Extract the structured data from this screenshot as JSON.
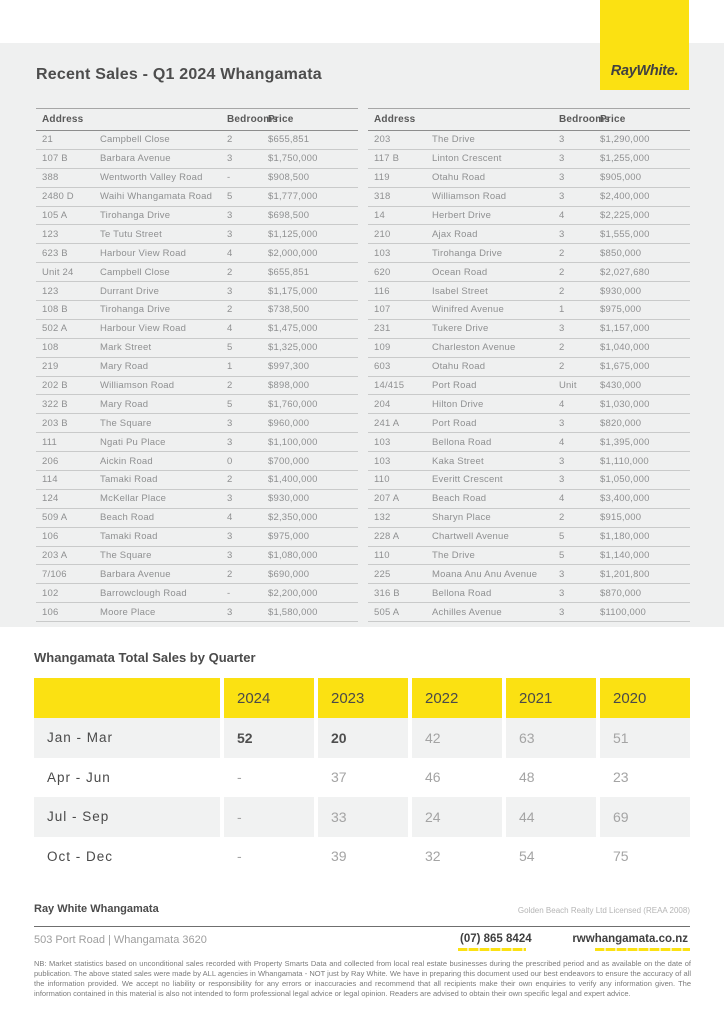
{
  "brand": {
    "logo_text": "RayWhite.",
    "yellow": "#FBE112"
  },
  "page_title": "Recent Sales - Q1 2024 Whangamata",
  "sales": {
    "header": {
      "address": "Address",
      "bedrooms": "Bedrooms",
      "price": "Price"
    },
    "left_rows": [
      {
        "number": "21",
        "street": "Campbell Close",
        "bedrooms": "2",
        "price": "$655,851"
      },
      {
        "number": "107 B",
        "street": "Barbara Avenue",
        "bedrooms": "3",
        "price": "$1,750,000"
      },
      {
        "number": "388",
        "street": "Wentworth Valley Road",
        "bedrooms": "-",
        "price": "$908,500"
      },
      {
        "number": "2480 D",
        "street": "Waihi Whangamata Road",
        "bedrooms": "5",
        "price": "$1,777,000"
      },
      {
        "number": "105 A",
        "street": "Tirohanga Drive",
        "bedrooms": "3",
        "price": "$698,500"
      },
      {
        "number": "123",
        "street": "Te Tutu Street",
        "bedrooms": "3",
        "price": "$1,125,000"
      },
      {
        "number": "623 B",
        "street": "Harbour View Road",
        "bedrooms": "4",
        "price": "$2,000,000"
      },
      {
        "number": "Unit 24",
        "street": "Campbell Close",
        "bedrooms": "2",
        "price": "$655,851"
      },
      {
        "number": "123",
        "street": "Durrant Drive",
        "bedrooms": "3",
        "price": "$1,175,000"
      },
      {
        "number": "108 B",
        "street": "Tirohanga Drive",
        "bedrooms": "2",
        "price": "$738,500"
      },
      {
        "number": "502 A",
        "street": "Harbour View Road",
        "bedrooms": "4",
        "price": "$1,475,000"
      },
      {
        "number": "108",
        "street": "Mark Street",
        "bedrooms": "5",
        "price": "$1,325,000"
      },
      {
        "number": "219",
        "street": "Mary Road",
        "bedrooms": "1",
        "price": "$997,300"
      },
      {
        "number": "202 B",
        "street": "Williamson Road",
        "bedrooms": "2",
        "price": "$898,000"
      },
      {
        "number": "322 B",
        "street": "Mary Road",
        "bedrooms": "5",
        "price": "$1,760,000"
      },
      {
        "number": "203 B",
        "street": "The Square",
        "bedrooms": "3",
        "price": "$960,000"
      },
      {
        "number": "111",
        "street": "Ngati Pu Place",
        "bedrooms": "3",
        "price": "$1,100,000"
      },
      {
        "number": "206",
        "street": "Aickin Road",
        "bedrooms": "0",
        "price": "$700,000"
      },
      {
        "number": "114",
        "street": "Tamaki Road",
        "bedrooms": "2",
        "price": "$1,400,000"
      },
      {
        "number": "124",
        "street": "McKellar Place",
        "bedrooms": "3",
        "price": "$930,000"
      },
      {
        "number": "509 A",
        "street": "Beach Road",
        "bedrooms": "4",
        "price": "$2,350,000"
      },
      {
        "number": "106",
        "street": "Tamaki Road",
        "bedrooms": "3",
        "price": "$975,000"
      },
      {
        "number": "203 A",
        "street": "The Square",
        "bedrooms": "3",
        "price": "$1,080,000"
      },
      {
        "number": "7/106",
        "street": "Barbara Avenue",
        "bedrooms": "2",
        "price": "$690,000"
      },
      {
        "number": "102",
        "street": "Barrowclough Road",
        "bedrooms": "-",
        "price": "$2,200,000"
      },
      {
        "number": "106",
        "street": "Moore Place",
        "bedrooms": "3",
        "price": "$1,580,000"
      }
    ],
    "right_rows": [
      {
        "number": "203",
        "street": "The Drive",
        "bedrooms": "3",
        "price": "$1,290,000"
      },
      {
        "number": "117 B",
        "street": "Linton Crescent",
        "bedrooms": "3",
        "price": "$1,255,000"
      },
      {
        "number": "119",
        "street": "Otahu Road",
        "bedrooms": "3",
        "price": "$905,000"
      },
      {
        "number": "318",
        "street": "Williamson Road",
        "bedrooms": "3",
        "price": "$2,400,000"
      },
      {
        "number": "14",
        "street": "Herbert Drive",
        "bedrooms": "4",
        "price": "$2,225,000"
      },
      {
        "number": "210",
        "street": "Ajax Road",
        "bedrooms": "3",
        "price": "$1,555,000"
      },
      {
        "number": "103",
        "street": "Tirohanga Drive",
        "bedrooms": "2",
        "price": "$850,000"
      },
      {
        "number": "620",
        "street": "Ocean Road",
        "bedrooms": "2",
        "price": "$2,027,680"
      },
      {
        "number": "116",
        "street": "Isabel Street",
        "bedrooms": "2",
        "price": "$930,000"
      },
      {
        "number": "107",
        "street": "Winifred Avenue",
        "bedrooms": "1",
        "price": "$975,000"
      },
      {
        "number": "231",
        "street": "Tukere Drive",
        "bedrooms": "3",
        "price": "$1,157,000"
      },
      {
        "number": "109",
        "street": "Charleston Avenue",
        "bedrooms": "2",
        "price": "$1,040,000"
      },
      {
        "number": "603",
        "street": "Otahu Road",
        "bedrooms": "2",
        "price": "$1,675,000"
      },
      {
        "number": "14/415",
        "street": "Port Road",
        "bedrooms": "Unit",
        "price": "$430,000"
      },
      {
        "number": "204",
        "street": "Hilton Drive",
        "bedrooms": "4",
        "price": "$1,030,000"
      },
      {
        "number": "241 A",
        "street": "Port Road",
        "bedrooms": "3",
        "price": "$820,000"
      },
      {
        "number": "103",
        "street": "Bellona Road",
        "bedrooms": "4",
        "price": "$1,395,000"
      },
      {
        "number": "103",
        "street": "Kaka Street",
        "bedrooms": "3",
        "price": "$1,110,000"
      },
      {
        "number": "110",
        "street": "Everitt Crescent",
        "bedrooms": "3",
        "price": "$1,050,000"
      },
      {
        "number": "207 A",
        "street": "Beach Road",
        "bedrooms": "4",
        "price": "$3,400,000"
      },
      {
        "number": "132",
        "street": "Sharyn Place",
        "bedrooms": "2",
        "price": "$915,000"
      },
      {
        "number": "228 A",
        "street": "Chartwell Avenue",
        "bedrooms": "5",
        "price": "$1,180,000"
      },
      {
        "number": "110",
        "street": "The Drive",
        "bedrooms": "5",
        "price": "$1,140,000"
      },
      {
        "number": "225",
        "street": "Moana Anu Anu Avenue",
        "bedrooms": "3",
        "price": "$1,201,800"
      },
      {
        "number": "316 B",
        "street": "Bellona Road",
        "bedrooms": "3",
        "price": "$870,000"
      },
      {
        "number": "505 A",
        "street": "Achilles Avenue",
        "bedrooms": "3",
        "price": "$1100,000"
      }
    ]
  },
  "quarterly": {
    "title": "Whangamata Total Sales by Quarter",
    "years": [
      "2024",
      "2023",
      "2022",
      "2021",
      "2020"
    ],
    "rows": [
      {
        "label": "Jan - Mar",
        "values": [
          "52",
          "20",
          "42",
          "63",
          "51"
        ]
      },
      {
        "label": "Apr - Jun",
        "values": [
          "-",
          "37",
          "46",
          "48",
          "23"
        ]
      },
      {
        "label": "Jul - Sep",
        "values": [
          "-",
          "33",
          "24",
          "44",
          "69"
        ]
      },
      {
        "label": "Oct - Dec",
        "values": [
          "-",
          "39",
          "32",
          "54",
          "75"
        ]
      }
    ]
  },
  "footer": {
    "office": "Ray White Whangamata",
    "license": "Golden Beach Realty Ltd Licensed (REAA 2008)",
    "address": "503 Port Road | Whangamata 3620",
    "phone": "(07) 865 8424",
    "website": "rwwhangamata.co.nz",
    "disclaimer": "NB: Market statistics based on unconditional sales recorded with Property Smarts Data and collected from local real estate businesses during the prescribed period and as available on the date of publication. The above stated sales were made by ALL agencies in Whangamata - NOT just by Ray White. We have in preparing this document used our best endeavors to ensure the accuracy of all the information provided. We accept no liability or responsibility for any errors or inaccuracies and recommend that all recipients make their own enquiries to verify any information given. The information contained in this material is also not intended to form professional legal advice or legal opinion. Readers are advised to obtain their own specific legal and expert advice."
  }
}
